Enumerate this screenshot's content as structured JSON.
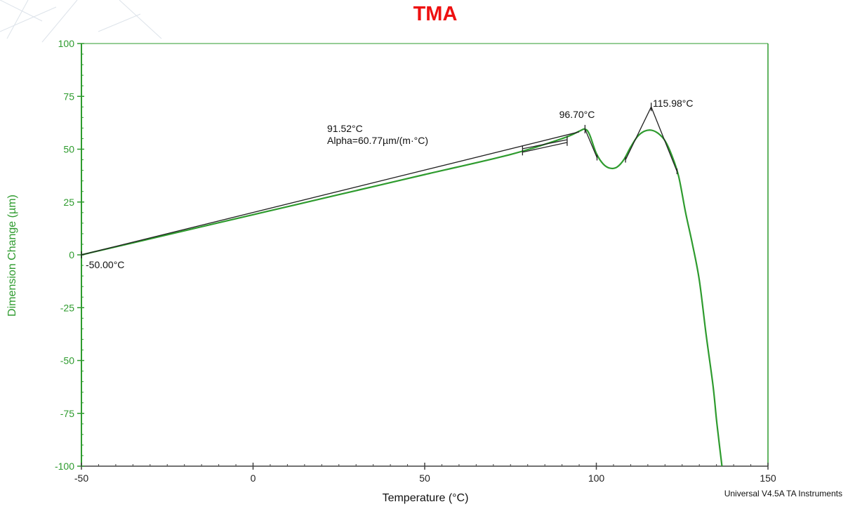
{
  "chart_data": {
    "type": "line",
    "title": "TMA",
    "xlabel": "Temperature (°C)",
    "ylabel": "Dimension Change (µm)",
    "xlim": [
      -50,
      150
    ],
    "ylim": [
      -100,
      100
    ],
    "x_ticks": [
      -50,
      0,
      50,
      100,
      150
    ],
    "y_ticks": [
      100,
      75,
      50,
      25,
      0,
      -25,
      -50,
      -75,
      -100
    ],
    "grid": false,
    "series": [
      {
        "color": "#2e9b2e",
        "x": [
          -50,
          -25,
          0,
          25,
          50,
          75,
          90,
          95,
          96.7,
          98,
          100,
          102,
          104,
          106,
          108,
          110,
          112,
          114,
          116,
          118,
          120,
          122,
          124,
          126,
          128,
          130,
          132,
          134,
          135,
          136,
          136.6
        ],
        "y": [
          0,
          9.5,
          19,
          28.5,
          38,
          47.5,
          55,
          58.5,
          59.5,
          57,
          48,
          43,
          41,
          41.5,
          45,
          51,
          56,
          58.5,
          59,
          57.5,
          54,
          47,
          37,
          20,
          5,
          -12,
          -38,
          -62,
          -78,
          -92,
          -100
        ]
      }
    ],
    "annotations": [
      {
        "label": "-50.00°C",
        "x": -50,
        "y": 0
      },
      {
        "label": "91.52°C",
        "x": 91.52,
        "y": 56
      },
      {
        "label": "Alpha=60.77µm/(m·°C)"
      },
      {
        "label": "96.70°C",
        "x": 96.7,
        "y": 59.5
      },
      {
        "label": "115.98°C",
        "x": 115.98,
        "y": 70
      }
    ],
    "footer": "Universal V4.5A TA Instruments",
    "colors": {
      "title": "#ee1111",
      "axis": "#2e9b2e",
      "curve": "#2e9b2e",
      "analysis": "#222222"
    }
  }
}
